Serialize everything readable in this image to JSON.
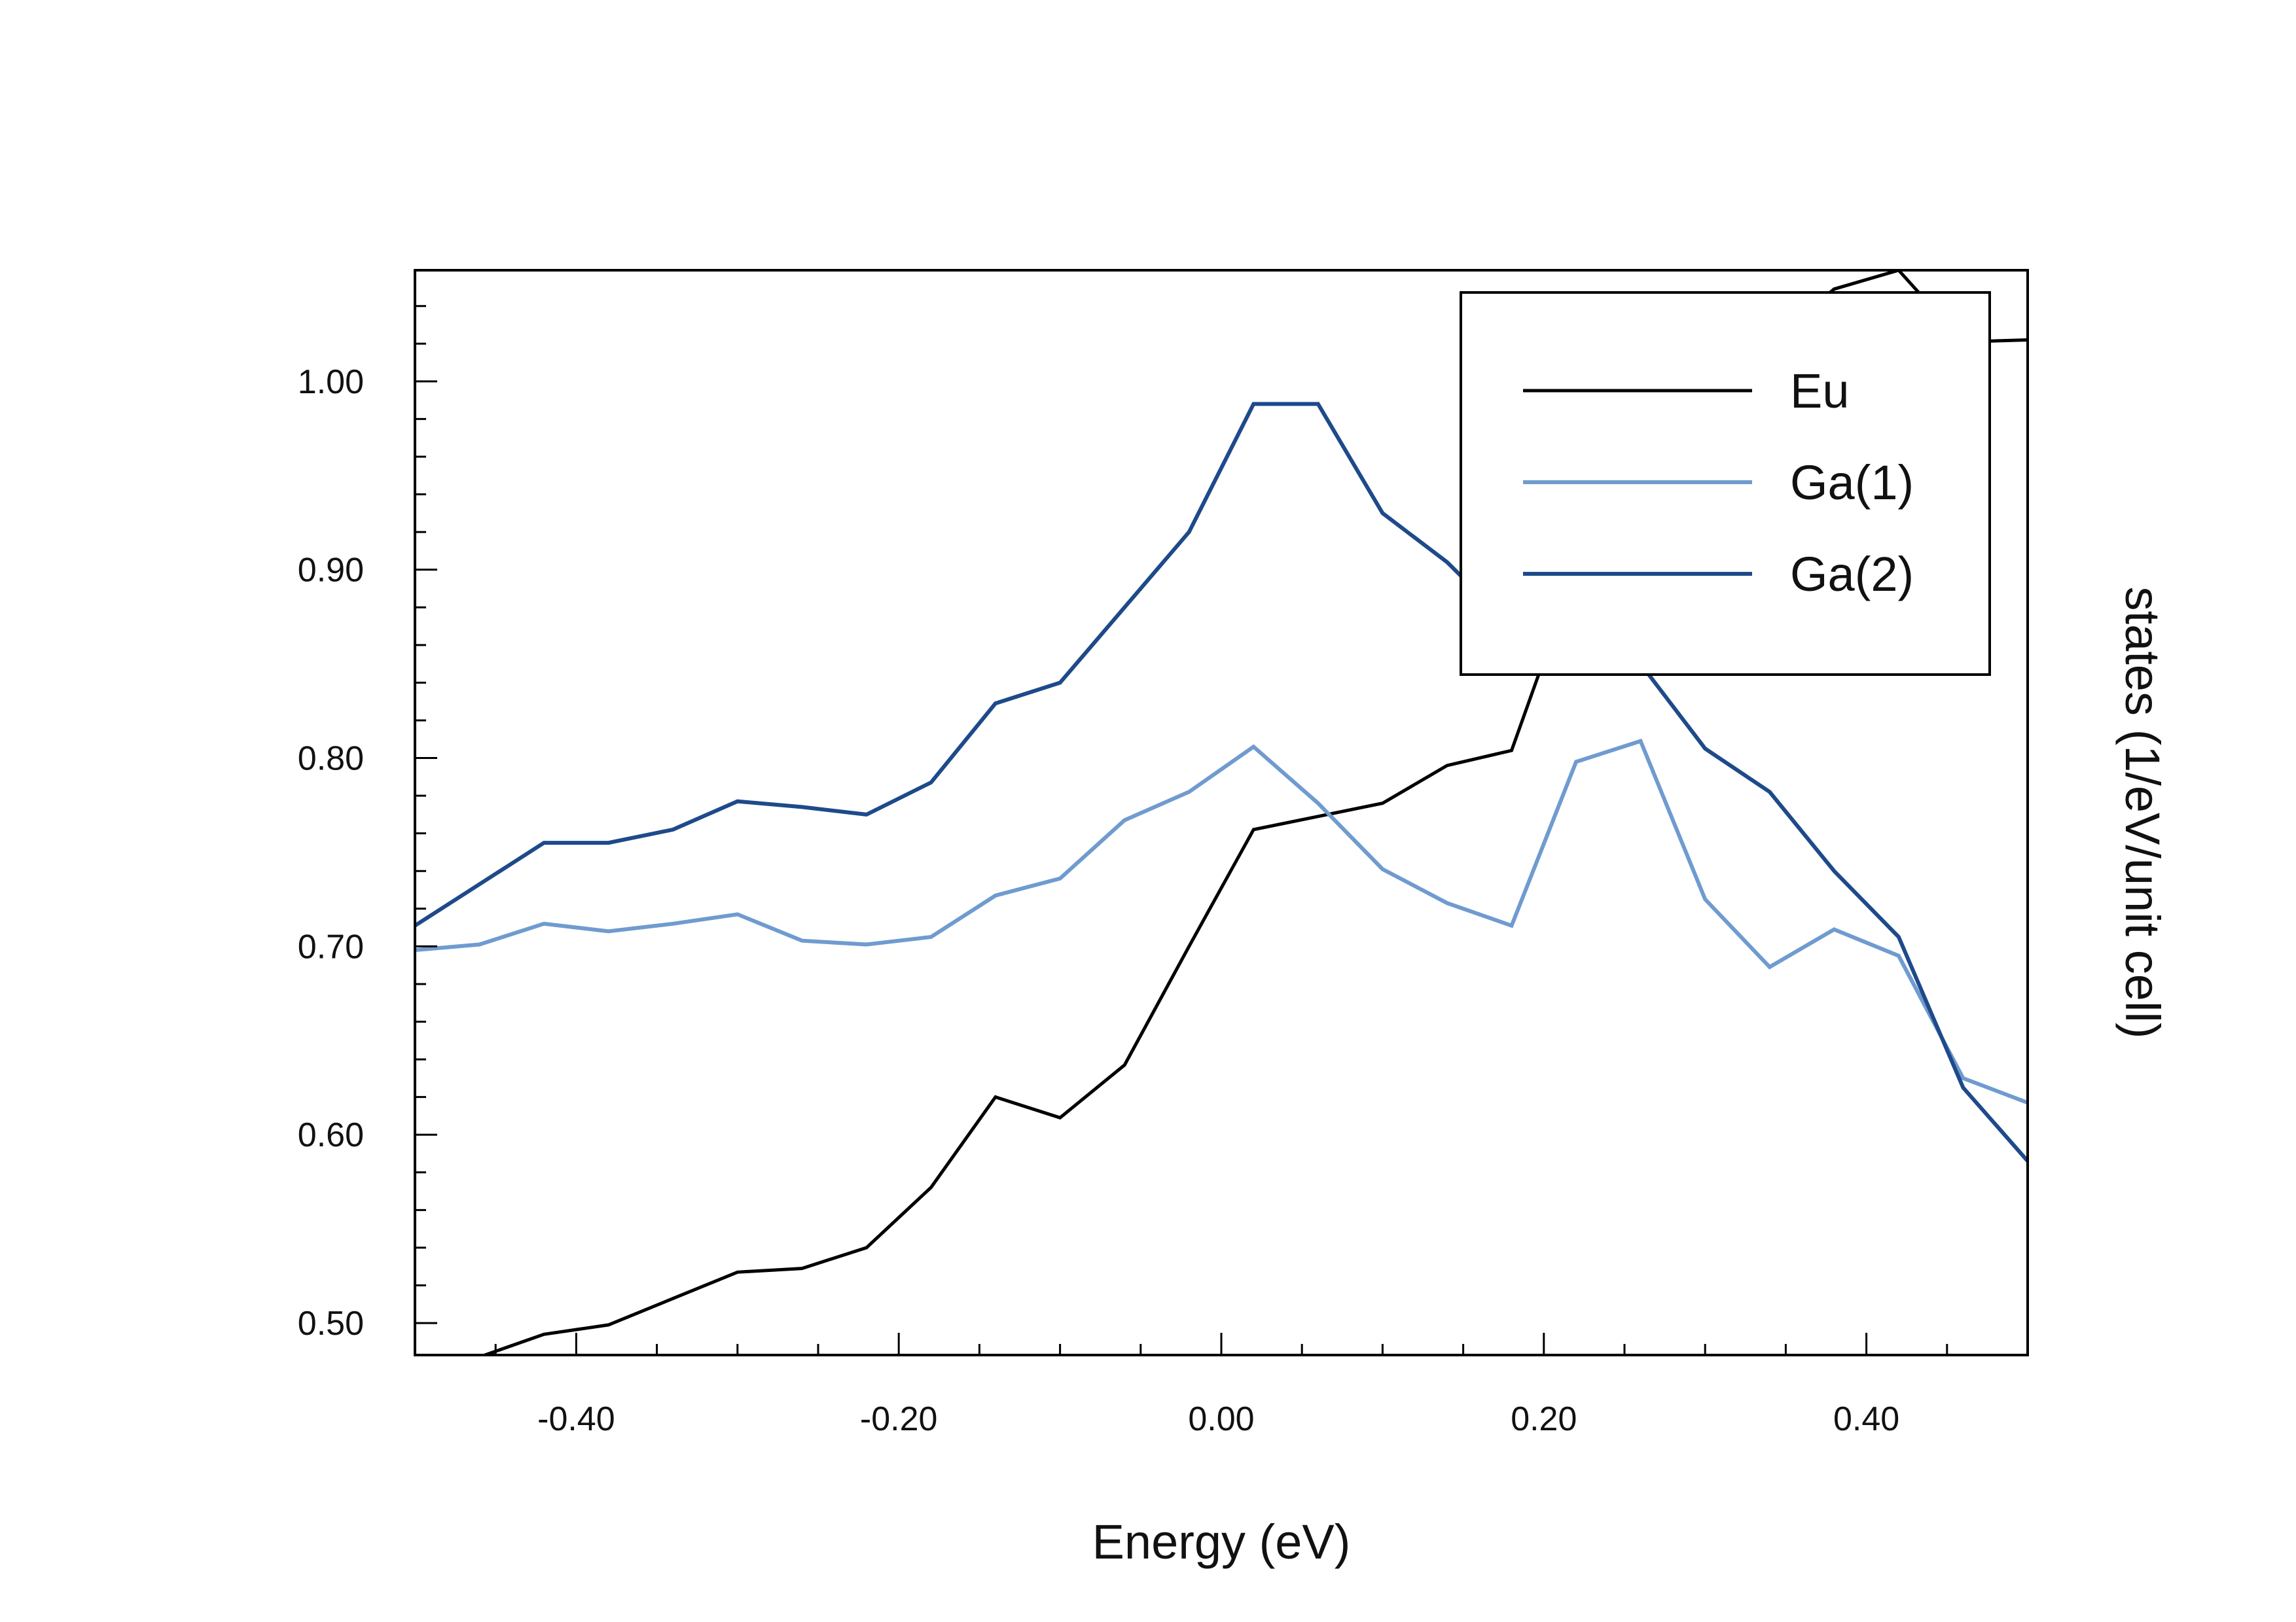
{
  "chart_data": {
    "type": "line",
    "title": "",
    "xlabel": "Energy (eV)",
    "ylabel": "states (1/eV/unit cell)",
    "xlim": [
      -0.5,
      0.5
    ],
    "ylim": [
      0.483,
      1.059
    ],
    "x_ticks": [
      "-0.40",
      "-0.20",
      "0.00",
      "0.20",
      "0.40"
    ],
    "x_tick_values": [
      -0.4,
      -0.2,
      0.0,
      0.2,
      0.4
    ],
    "y_ticks": [
      "0.50",
      "0.60",
      "0.70",
      "0.80",
      "0.90",
      "1.00"
    ],
    "y_tick_values": [
      0.5,
      0.6,
      0.7,
      0.8,
      0.9,
      1.0
    ],
    "grid": false,
    "legend_position": "top-right",
    "series": [
      {
        "name": "Eu",
        "color": "#000000",
        "x": [
          -0.46,
          -0.42,
          -0.38,
          -0.34,
          -0.3,
          -0.26,
          -0.22,
          -0.18,
          -0.14,
          -0.1,
          -0.06,
          -0.02,
          0.02,
          0.06,
          0.1,
          0.14,
          0.18,
          0.22,
          0.26,
          0.3,
          0.34,
          0.38,
          0.42,
          0.46,
          0.5
        ],
        "values": [
          0.482,
          0.494,
          0.499,
          0.513,
          0.527,
          0.529,
          0.54,
          0.572,
          0.62,
          0.609,
          0.637,
          0.7,
          0.762,
          0.769,
          0.776,
          0.796,
          0.804,
          0.9,
          0.96,
          0.99,
          1.02,
          1.049,
          1.059,
          1.021,
          1.022
        ]
      },
      {
        "name": "Ga(1)",
        "color": "#6f9bcf",
        "x": [
          -0.5,
          -0.46,
          -0.42,
          -0.38,
          -0.34,
          -0.3,
          -0.26,
          -0.22,
          -0.18,
          -0.14,
          -0.1,
          -0.06,
          -0.02,
          0.02,
          0.06,
          0.1,
          0.14,
          0.18,
          0.22,
          0.26,
          0.3,
          0.34,
          0.38,
          0.42,
          0.46,
          0.5
        ],
        "values": [
          0.698,
          0.701,
          0.712,
          0.708,
          0.712,
          0.717,
          0.703,
          0.701,
          0.705,
          0.727,
          0.736,
          0.767,
          0.782,
          0.806,
          0.776,
          0.741,
          0.723,
          0.711,
          0.798,
          0.809,
          0.725,
          0.689,
          0.709,
          0.695,
          0.63,
          0.617
        ]
      },
      {
        "name": "Ga(2)",
        "color": "#1e4a8a",
        "x": [
          -0.5,
          -0.46,
          -0.42,
          -0.38,
          -0.34,
          -0.3,
          -0.26,
          -0.22,
          -0.18,
          -0.14,
          -0.1,
          -0.06,
          -0.02,
          0.02,
          0.06,
          0.1,
          0.14,
          0.18,
          0.22,
          0.26,
          0.3,
          0.34,
          0.38,
          0.42,
          0.46,
          0.5
        ],
        "values": [
          0.711,
          0.733,
          0.755,
          0.755,
          0.762,
          0.777,
          0.774,
          0.77,
          0.787,
          0.829,
          0.84,
          0.88,
          0.92,
          0.988,
          0.988,
          0.93,
          0.904,
          0.87,
          0.87,
          0.85,
          0.805,
          0.782,
          0.74,
          0.705,
          0.625,
          0.586
        ]
      }
    ]
  }
}
